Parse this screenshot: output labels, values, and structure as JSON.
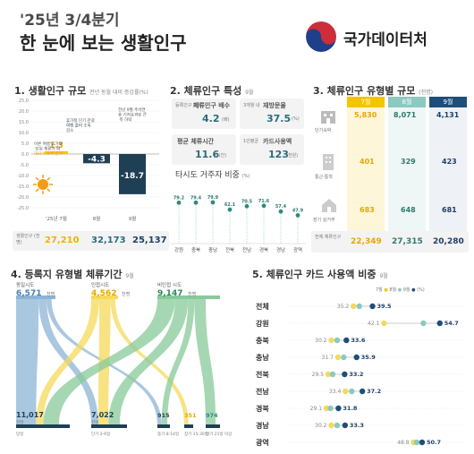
{
  "header": {
    "title_line1": "'25년 3/4분기",
    "title_line2": "한 눈에 보는 생활인구",
    "brand": "국가데이터처"
  },
  "colors": {
    "yellow": "#f5c400",
    "teal": "#8cc9c0",
    "navy": "#1f4e79",
    "blue": "#8db4d6",
    "green": "#88c999",
    "dark": "#1f3f55"
  },
  "section1": {
    "title": "1. 생활인구 규모",
    "subtitle": "전년 동월 대비 증감률(%)",
    "y_ticks": [
      "25.0",
      "20.0",
      "15.0",
      "10.0",
      "5.0",
      "0.0",
      "-5.0",
      "-10.0",
      "-15.0",
      "-20.0",
      "-25.0"
    ],
    "months": [
      "'25년 7월",
      "8월",
      "9월"
    ],
    "bars": [
      {
        "label": "1.3",
        "note": "이른 여름 휴가로 당일 체류가 확대되어 소폭 증가",
        "note_emph": "소폭 증가"
      },
      {
        "label": "-4.3",
        "note": "휴가철 단기 관광여행 줄어 소폭 감소",
        "note_emph": "소폭 감소"
      },
      {
        "label": "-18.7",
        "note": "전년 9월 추석연휴 기저효과로 큰 폭 하락",
        "note_emph": "큰 폭 하락"
      }
    ],
    "row_label": "생활인구 (천명)",
    "row_values": [
      "27,210",
      "32,173",
      "25,137"
    ]
  },
  "section2": {
    "title": "2. 체류인구 특성",
    "subtitle": "9월",
    "cards": [
      {
        "prefix": "등록인구 대비",
        "label": "체류인구 배수",
        "value": "4.2",
        "unit": "(배)"
      },
      {
        "prefix": "3개월 내",
        "label": "재방문율",
        "value": "37.5",
        "unit": "(%)"
      },
      {
        "prefix": "",
        "label": "평균 체류시간",
        "value": "11.6",
        "unit": "(시간)"
      },
      {
        "prefix": "1인평균",
        "label": "카드사용액",
        "value": "123",
        "unit": "(천원)"
      }
    ],
    "chart_title": "타시도 거주자 비중",
    "chart_unit": "(%)",
    "chart_data": {
      "type": "lollipop",
      "categories": [
        "강원",
        "충북",
        "충남",
        "전북",
        "전남",
        "경북",
        "경남",
        "광역"
      ],
      "values": [
        79.2,
        79.4,
        79.9,
        62.1,
        70.5,
        71.6,
        57.4,
        47.9
      ]
    }
  },
  "section3": {
    "title": "3. 체류인구 유형별 규모",
    "subtitle": "(천명)",
    "months": [
      "7월",
      "8월",
      "9월"
    ],
    "rows": [
      {
        "label": "단기숙박",
        "values": [
          "5,830",
          "8,071",
          "4,131"
        ]
      },
      {
        "label": "통근·통학",
        "values": [
          "401",
          "329",
          "423"
        ]
      },
      {
        "label": "장기 실거주",
        "values": [
          "683",
          "648",
          "681"
        ]
      }
    ],
    "total_label": "전체 체류인구",
    "total_values": [
      "22,349",
      "27,315",
      "20,280"
    ]
  },
  "section4": {
    "title": "4. 등록지 유형별 체류기간",
    "subtitle": "9월",
    "sources": [
      {
        "name": "동일시도",
        "value": "6,571",
        "unit": "천명"
      },
      {
        "name": "인접시도",
        "value": "4,562",
        "unit": "천명"
      },
      {
        "name": "비인접 시도",
        "value": "9,147",
        "unit": "천명"
      }
    ],
    "targets": [
      {
        "value": "11,017",
        "unit": "천명",
        "label": "당일"
      },
      {
        "value": "7,022",
        "unit": "천명",
        "label": "단기 2-6일"
      },
      {
        "value": "915",
        "label": "중기 8-14일"
      },
      {
        "value": "351",
        "label": "장기 15-30일"
      },
      {
        "value": "974",
        "label": "장기 21일 이상"
      }
    ]
  },
  "section5": {
    "title": "5. 체류인구 카드 사용액 비중",
    "subtitle": "9월",
    "legend": [
      "7월",
      "8월",
      "9월"
    ],
    "legend_unit": "(%)",
    "chart_data": {
      "type": "dot",
      "categories": [
        "전체",
        "강원",
        "충북",
        "충남",
        "전북",
        "전남",
        "경북",
        "경남",
        "광역"
      ],
      "series": [
        {
          "name": "7월",
          "values": [
            35.2,
            42.1,
            30.2,
            31.7,
            29.5,
            33.4,
            29.1,
            30.2,
            48.8
          ]
        },
        {
          "name": "8월",
          "values": [
            36.5,
            51.0,
            31.5,
            33.0,
            30.5,
            34.8,
            30.0,
            31.5,
            49.5
          ]
        },
        {
          "name": "9월",
          "values": [
            39.5,
            54.7,
            33.6,
            35.9,
            33.2,
            37.2,
            31.8,
            33.3,
            50.7
          ]
        }
      ],
      "xlim": [
        20,
        60
      ]
    }
  }
}
